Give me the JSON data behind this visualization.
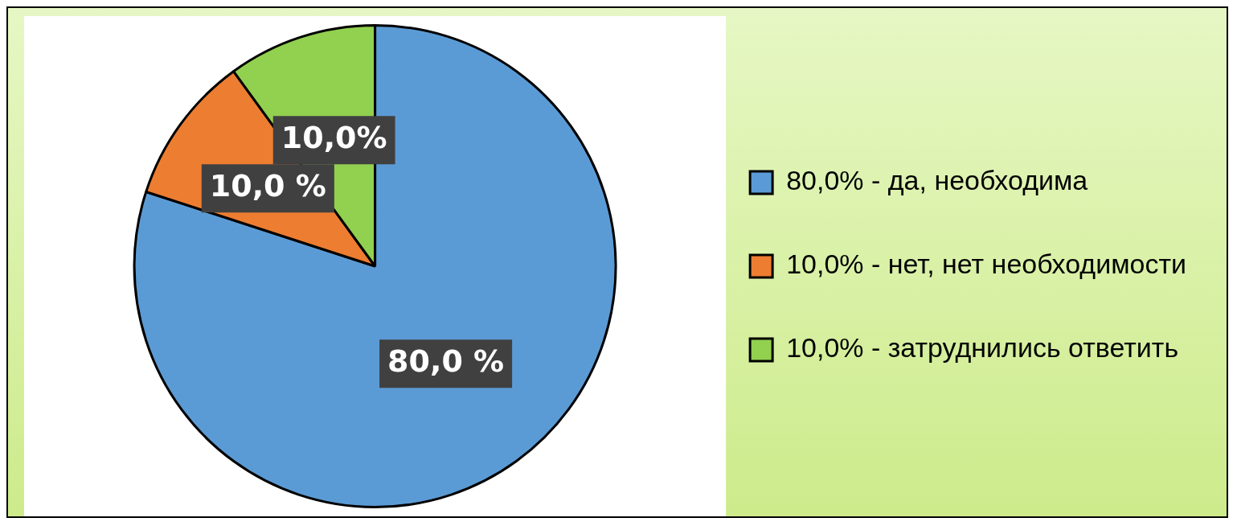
{
  "chart_data": {
    "type": "pie",
    "categories": [
      "80,0% - да, необходима",
      "10,0% - нет, нет необходимости",
      "10,0% - затруднились ответить"
    ],
    "values": [
      80,
      10,
      10
    ],
    "colors": [
      "#5b9bd5",
      "#ed7d31",
      "#92d050"
    ],
    "value_labels": [
      "80,0 %",
      "10,0 %",
      "10,0%"
    ],
    "legend": "right"
  }
}
